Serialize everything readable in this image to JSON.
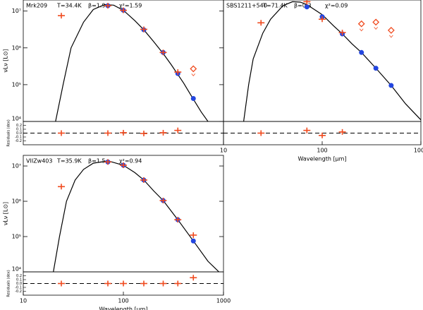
{
  "chart_data": [
    {
      "type": "scatter",
      "title": "Mrk209",
      "annotations": [
        "T=34.4K",
        "β=1.9",
        "χ²=1.59"
      ],
      "ylabel": "νLν [L⊙]",
      "residual_label": "Residuals (dex)",
      "log_x": true,
      "log_y": true,
      "xlim": [
        10,
        1000
      ],
      "ylim": [
        10000,
        20000000
      ],
      "yticks": [
        {
          "value": 10000,
          "label": "10⁴"
        },
        {
          "value": 100000,
          "label": "10⁵"
        },
        {
          "value": 1000000,
          "label": "10⁶"
        },
        {
          "value": 10000000,
          "label": "10⁷"
        }
      ],
      "observed": {
        "color": "#f04a1e",
        "x": [
          24,
          70,
          100,
          160,
          250,
          350
        ],
        "values": [
          7500000,
          14000000,
          10500000,
          3200000,
          750000,
          220000
        ]
      },
      "upper_limits": {
        "color": "#f04a1e",
        "x": [
          500
        ],
        "values": [
          270000
        ]
      },
      "model": {
        "color": "#2346e0",
        "x": [
          70,
          100,
          160,
          250,
          350,
          500
        ],
        "values": [
          14000000,
          10500000,
          3100000,
          750000,
          200000,
          42000
        ]
      },
      "curve": {
        "color": "#000000",
        "x": [
          21,
          25,
          30,
          40,
          50,
          65,
          80,
          100,
          130,
          160,
          200,
          250,
          300,
          400,
          500,
          600,
          700
        ],
        "values": [
          10000,
          100000,
          1000000,
          5000000,
          11000000,
          15000000,
          14500000,
          10500000,
          5500000,
          3100000,
          1500000,
          700000,
          350000,
          110000,
          40000,
          18000,
          10000
        ]
      },
      "residuals": {
        "color": "#f04a1e",
        "x": [
          24,
          70,
          100,
          160,
          250,
          350
        ],
        "values": [
          0.0,
          0.0,
          0.01,
          -0.01,
          0.01,
          0.07
        ],
        "ylim": [
          -0.3,
          0.3
        ],
        "yticks": [
          0.2,
          0.1,
          {
            "value": 0,
            "label": "0.0"
          },
          -0.1,
          -0.2
        ]
      }
    },
    {
      "type": "scatter",
      "title": "SBS1211+540",
      "annotations": [
        "T=71.4K",
        "β=0.3",
        "χ²=0.09"
      ],
      "xlabel": "Wavelength [μm]",
      "log_x": true,
      "log_y": true,
      "xlim": [
        10,
        1000
      ],
      "ylim": [
        10000,
        20000000
      ],
      "xticks": [
        10,
        100,
        1000
      ],
      "observed": {
        "color": "#f04a1e",
        "x": [
          24,
          70,
          100,
          160
        ],
        "values": [
          4800000,
          18000000,
          6000000,
          2600000
        ]
      },
      "upper_limits": {
        "color": "#f04a1e",
        "x": [
          250,
          350,
          500
        ],
        "values": [
          4500000,
          5000000,
          3000000
        ]
      },
      "model": {
        "color": "#2346e0",
        "x": [
          70,
          100,
          160,
          250,
          350,
          500
        ],
        "values": [
          13000000,
          7000000,
          2400000,
          750000,
          280000,
          95000
        ]
      },
      "curve": {
        "color": "#000000",
        "x": [
          16,
          18,
          20,
          25,
          30,
          40,
          50,
          60,
          70,
          100,
          130,
          160,
          200,
          250,
          350,
          500,
          700,
          1000
        ],
        "values": [
          10000,
          100000,
          500000,
          2500000,
          6000000,
          14000000,
          18000000,
          17500000,
          15000000,
          8000000,
          4000000,
          2400000,
          1300000,
          750000,
          280000,
          95000,
          30000,
          11000
        ]
      },
      "residuals": {
        "color": "#f04a1e",
        "x": [
          24,
          70,
          100,
          160
        ],
        "values": [
          0.0,
          0.07,
          -0.06,
          0.03
        ],
        "ylim": [
          -0.3,
          0.3
        ]
      }
    },
    {
      "type": "scatter",
      "title": "VIIZw403",
      "annotations": [
        "T=35.9K",
        "β=1.5",
        "χ²=0.94"
      ],
      "ylabel": "νLν [L⊙]",
      "residual_label": "Residuals (dex)",
      "xlabel": "Wavelength [μm]",
      "log_x": true,
      "log_y": true,
      "xlim": [
        10,
        1000
      ],
      "ylim": [
        10000,
        20000000
      ],
      "xticks": [
        10,
        100,
        1000
      ],
      "yticks": [
        {
          "value": 10000,
          "label": "10⁴"
        },
        {
          "value": 100000,
          "label": "10⁵"
        },
        {
          "value": 1000000,
          "label": "10⁶"
        },
        {
          "value": 10000000,
          "label": "10⁷"
        }
      ],
      "observed": {
        "color": "#f04a1e",
        "x": [
          24,
          70,
          100,
          160,
          250,
          350,
          500
        ],
        "values": [
          2600000,
          13000000,
          10500000,
          4000000,
          1050000,
          300000,
          110000
        ]
      },
      "model": {
        "color": "#2346e0",
        "x": [
          70,
          100,
          160,
          250,
          350,
          500
        ],
        "values": [
          13000000,
          10500000,
          4000000,
          1050000,
          300000,
          75000
        ]
      },
      "curve": {
        "color": "#000000",
        "x": [
          20,
          23,
          27,
          33,
          40,
          50,
          70,
          100,
          130,
          160,
          200,
          250,
          350,
          500,
          700,
          900
        ],
        "values": [
          10000,
          100000,
          1000000,
          4000000,
          8000000,
          12000000,
          14000000,
          10500000,
          6500000,
          4000000,
          2000000,
          1050000,
          300000,
          75000,
          20000,
          10000
        ]
      },
      "residuals": {
        "color": "#f04a1e",
        "x": [
          24,
          70,
          100,
          160,
          250,
          350,
          500
        ],
        "values": [
          0.0,
          0.0,
          0.0,
          0.0,
          0.0,
          0.0,
          0.15
        ],
        "ylim": [
          -0.3,
          0.3
        ],
        "yticks": [
          0.2,
          0.1,
          {
            "value": 0,
            "label": "0.0"
          },
          -0.1,
          -0.2
        ]
      }
    }
  ]
}
